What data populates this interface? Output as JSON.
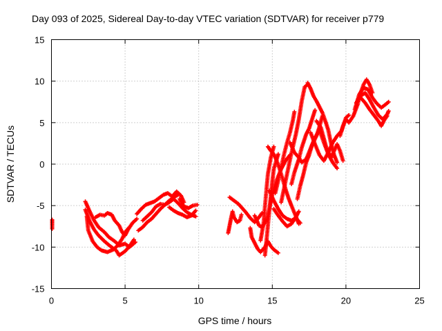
{
  "chart_data": {
    "type": "scatter",
    "title": "Day 093 of 2025, Sidereal Day-to-day VTEC variation (SDTVAR) for receiver p779",
    "xlabel": "GPS time / hours",
    "ylabel": "SDTVAR / TECUs",
    "xlim": [
      0,
      25
    ],
    "ylim": [
      -15,
      15
    ],
    "xticks": [
      "0",
      "5",
      "10",
      "15",
      "20",
      "25"
    ],
    "yticks": [
      "-15",
      "-10",
      "-5",
      "0",
      "5",
      "10",
      "15"
    ],
    "grid": true,
    "marker": "plus",
    "color": "#ff0000",
    "series": [
      {
        "points": [
          [
            0.05,
            -6.7
          ],
          [
            0.05,
            -7.3
          ],
          [
            0.05,
            -7.8
          ]
        ]
      },
      {
        "points": [
          [
            2.3,
            -4.5
          ],
          [
            2.6,
            -5.7
          ],
          [
            2.9,
            -6.8
          ],
          [
            3.2,
            -7.6
          ],
          [
            3.6,
            -8.2
          ],
          [
            3.9,
            -8.8
          ],
          [
            4.3,
            -9.3
          ],
          [
            4.6,
            -9.8
          ],
          [
            5.0,
            -9.6
          ],
          [
            5.3,
            -10.0
          ],
          [
            5.7,
            -9.4
          ]
        ]
      },
      {
        "points": [
          [
            2.3,
            -5.5
          ],
          [
            2.6,
            -6.9
          ],
          [
            2.9,
            -7.9
          ],
          [
            3.2,
            -8.6
          ],
          [
            3.6,
            -9.3
          ],
          [
            4.0,
            -9.9
          ],
          [
            4.4,
            -10.4
          ],
          [
            4.6,
            -11.0
          ],
          [
            5.0,
            -10.5
          ],
          [
            5.3,
            -9.9
          ],
          [
            5.6,
            -9.1
          ]
        ]
      },
      {
        "points": [
          [
            2.4,
            -6.3
          ],
          [
            2.5,
            -8.0
          ],
          [
            2.8,
            -9.3
          ],
          [
            3.1,
            -10.0
          ],
          [
            3.4,
            -10.4
          ],
          [
            3.8,
            -10.6
          ],
          [
            4.2,
            -10.3
          ],
          [
            4.5,
            -9.8
          ],
          [
            4.8,
            -9.0
          ],
          [
            5.0,
            -8.2
          ],
          [
            5.3,
            -7.6
          ]
        ]
      },
      {
        "points": [
          [
            3.0,
            -6.4
          ],
          [
            3.3,
            -6.1
          ],
          [
            3.6,
            -6.2
          ],
          [
            3.8,
            -5.9
          ],
          [
            4.1,
            -6.1
          ],
          [
            4.3,
            -6.8
          ],
          [
            4.6,
            -7.4
          ],
          [
            4.8,
            -8.2
          ],
          [
            5.0,
            -8.6
          ],
          [
            5.2,
            -7.9
          ],
          [
            5.5,
            -7.1
          ],
          [
            5.8,
            -6.6
          ]
        ]
      },
      {
        "points": [
          [
            5.9,
            -8.0
          ],
          [
            6.2,
            -7.6
          ],
          [
            6.5,
            -7.0
          ],
          [
            6.8,
            -6.6
          ],
          [
            7.1,
            -6.0
          ],
          [
            7.4,
            -5.4
          ],
          [
            7.7,
            -4.9
          ],
          [
            8.0,
            -4.4
          ],
          [
            8.3,
            -4.0
          ],
          [
            8.6,
            -3.7
          ]
        ]
      },
      {
        "points": [
          [
            5.8,
            -6.0
          ],
          [
            6.1,
            -5.4
          ],
          [
            6.4,
            -4.9
          ],
          [
            6.7,
            -4.7
          ],
          [
            7.0,
            -4.5
          ],
          [
            7.3,
            -4.1
          ],
          [
            7.6,
            -3.7
          ],
          [
            7.9,
            -3.5
          ],
          [
            8.2,
            -3.9
          ],
          [
            8.5,
            -3.3
          ],
          [
            8.8,
            -3.8
          ],
          [
            9.0,
            -4.6
          ]
        ]
      },
      {
        "points": [
          [
            6.2,
            -6.8
          ],
          [
            6.5,
            -6.3
          ],
          [
            6.8,
            -5.8
          ],
          [
            7.1,
            -5.1
          ],
          [
            7.4,
            -4.8
          ],
          [
            7.7,
            -4.9
          ],
          [
            8.0,
            -4.6
          ],
          [
            8.3,
            -4.2
          ],
          [
            8.6,
            -4.7
          ],
          [
            8.9,
            -5.3
          ],
          [
            9.2,
            -5.8
          ],
          [
            9.5,
            -6.1
          ],
          [
            9.8,
            -6.3
          ]
        ]
      },
      {
        "points": [
          [
            8.0,
            -5.2
          ],
          [
            8.3,
            -5.6
          ],
          [
            8.6,
            -5.9
          ],
          [
            8.9,
            -6.1
          ],
          [
            9.2,
            -6.4
          ],
          [
            9.5,
            -6.2
          ],
          [
            9.8,
            -5.6
          ]
        ]
      },
      {
        "points": [
          [
            8.7,
            -4.2
          ],
          [
            9.0,
            -5.1
          ],
          [
            9.3,
            -5.3
          ],
          [
            9.6,
            -5.0
          ],
          [
            9.9,
            -4.9
          ]
        ]
      },
      {
        "points": [
          [
            12.0,
            -8.3
          ],
          [
            12.1,
            -7.4
          ],
          [
            12.2,
            -6.5
          ],
          [
            12.3,
            -5.7
          ],
          [
            12.4,
            -6.4
          ],
          [
            12.6,
            -7.0
          ],
          [
            12.8,
            -6.8
          ],
          [
            12.9,
            -6.1
          ]
        ]
      },
      {
        "points": [
          [
            12.1,
            -4.0
          ],
          [
            12.4,
            -4.4
          ],
          [
            12.7,
            -4.8
          ],
          [
            12.9,
            -5.2
          ],
          [
            13.2,
            -5.8
          ],
          [
            13.5,
            -6.5
          ],
          [
            13.8,
            -7.0
          ],
          [
            14.1,
            -6.4
          ],
          [
            14.3,
            -5.9
          ]
        ]
      },
      {
        "points": [
          [
            13.8,
            -6.2
          ],
          [
            14.1,
            -7.4
          ],
          [
            14.3,
            -7.6
          ],
          [
            14.6,
            -6.8
          ],
          [
            14.8,
            -5.4
          ],
          [
            15.0,
            -3.6
          ],
          [
            15.3,
            -1.9
          ],
          [
            15.6,
            -0.6
          ],
          [
            15.9,
            0.4
          ],
          [
            16.2,
            1.1
          ]
        ]
      },
      {
        "points": [
          [
            13.5,
            -7.7
          ],
          [
            13.6,
            -8.8
          ],
          [
            13.8,
            -9.5
          ],
          [
            14.0,
            -10.2
          ],
          [
            14.2,
            -10.6
          ],
          [
            14.5,
            -10.0
          ],
          [
            14.7,
            -9.3
          ],
          [
            14.9,
            -9.9
          ],
          [
            15.1,
            -10.3
          ],
          [
            15.4,
            -10.7
          ]
        ]
      },
      {
        "points": [
          [
            14.5,
            -11.0
          ],
          [
            14.6,
            -9.3
          ],
          [
            14.7,
            -7.4
          ],
          [
            14.8,
            -5.6
          ],
          [
            14.9,
            -3.8
          ],
          [
            15.0,
            -2.1
          ],
          [
            15.1,
            -0.6
          ],
          [
            15.3,
            0.6
          ],
          [
            15.4,
            1.2
          ]
        ]
      },
      {
        "points": [
          [
            14.2,
            -9.2
          ],
          [
            14.4,
            -7.2
          ],
          [
            14.5,
            -5.1
          ],
          [
            14.6,
            -3.1
          ],
          [
            14.7,
            -1.2
          ],
          [
            14.9,
            0.8
          ],
          [
            15.1,
            2.1
          ]
        ]
      },
      {
        "points": [
          [
            14.8,
            -3.2
          ],
          [
            15.1,
            -4.4
          ],
          [
            15.4,
            -5.4
          ],
          [
            15.7,
            -6.2
          ],
          [
            16.0,
            -6.6
          ],
          [
            16.3,
            -6.8
          ],
          [
            16.6,
            -6.5
          ],
          [
            16.9,
            -7.1
          ]
        ]
      },
      {
        "points": [
          [
            15.1,
            -5.4
          ],
          [
            15.4,
            -6.2
          ],
          [
            15.7,
            -6.9
          ],
          [
            16.0,
            -7.5
          ],
          [
            16.3,
            -7.2
          ],
          [
            16.6,
            -6.4
          ],
          [
            16.8,
            -5.7
          ]
        ]
      },
      {
        "points": [
          [
            14.7,
            2.1
          ],
          [
            14.9,
            1.6
          ],
          [
            15.1,
            1.2
          ],
          [
            15.3,
            0.4
          ],
          [
            15.5,
            -0.6
          ],
          [
            15.7,
            -1.8
          ],
          [
            15.9,
            -3.0
          ],
          [
            16.1,
            -4.1
          ],
          [
            16.3,
            -5.0
          ],
          [
            16.6,
            -6.3
          ],
          [
            16.8,
            -7.2
          ]
        ]
      },
      {
        "points": [
          [
            15.6,
            -4.6
          ],
          [
            15.8,
            -2.9
          ],
          [
            16.0,
            -1.2
          ],
          [
            16.2,
            0.5
          ],
          [
            16.4,
            2.1
          ],
          [
            16.6,
            3.6
          ],
          [
            16.8,
            5.4
          ],
          [
            17.0,
            7.6
          ],
          [
            17.2,
            9.3
          ],
          [
            17.4,
            9.6
          ]
        ]
      },
      {
        "points": [
          [
            15.2,
            -3.5
          ],
          [
            15.4,
            -2.0
          ],
          [
            15.6,
            -0.4
          ],
          [
            15.8,
            1.2
          ],
          [
            16.0,
            2.6
          ],
          [
            16.2,
            3.8
          ],
          [
            16.4,
            5.3
          ],
          [
            16.5,
            6.3
          ]
        ]
      },
      {
        "points": [
          [
            16.3,
            -2.4
          ],
          [
            16.5,
            -1.0
          ],
          [
            16.8,
            0.6
          ],
          [
            17.0,
            2.0
          ],
          [
            17.3,
            3.6
          ],
          [
            17.5,
            4.3
          ],
          [
            17.7,
            5.4
          ],
          [
            17.9,
            6.5
          ]
        ]
      },
      {
        "points": [
          [
            16.7,
            -4.2
          ],
          [
            16.9,
            -2.6
          ],
          [
            17.1,
            -1.3
          ],
          [
            17.3,
            0.2
          ],
          [
            17.5,
            1.1
          ],
          [
            17.7,
            2.3
          ],
          [
            18.0,
            3.4
          ],
          [
            18.2,
            4.5
          ],
          [
            18.4,
            5.8
          ]
        ]
      },
      {
        "points": [
          [
            16.2,
            2.6
          ],
          [
            16.5,
            1.4
          ],
          [
            16.8,
            0.8
          ],
          [
            17.0,
            0.2
          ],
          [
            17.3,
            0.6
          ],
          [
            17.6,
            1.9
          ],
          [
            17.9,
            3.2
          ],
          [
            18.2,
            4.1
          ],
          [
            18.5,
            2.6
          ],
          [
            18.8,
            1.2
          ],
          [
            19.1,
            0.2
          ],
          [
            19.4,
            -0.5
          ]
        ]
      },
      {
        "points": [
          [
            17.4,
            9.8
          ],
          [
            17.6,
            9.1
          ],
          [
            17.8,
            8.2
          ],
          [
            18.0,
            7.6
          ],
          [
            18.2,
            6.9
          ],
          [
            18.4,
            6.2
          ],
          [
            18.6,
            5.2
          ],
          [
            18.8,
            4.1
          ],
          [
            19.0,
            2.4
          ],
          [
            19.2,
            1.1
          ],
          [
            19.4,
            0.2
          ]
        ]
      },
      {
        "points": [
          [
            18.0,
            5.2
          ],
          [
            18.3,
            4.4
          ],
          [
            18.5,
            3.1
          ],
          [
            18.7,
            1.8
          ],
          [
            19.0,
            0.8
          ],
          [
            19.2,
            1.6
          ],
          [
            19.4,
            2.4
          ],
          [
            19.6,
            1.6
          ],
          [
            19.8,
            0.4
          ]
        ]
      },
      {
        "points": [
          [
            17.6,
            3.8
          ],
          [
            17.9,
            2.4
          ],
          [
            18.2,
            1.1
          ],
          [
            18.5,
            0.4
          ],
          [
            18.8,
            1.4
          ],
          [
            19.1,
            2.6
          ],
          [
            19.4,
            3.4
          ],
          [
            19.7,
            4.0
          ],
          [
            20.0,
            5.6
          ],
          [
            20.2,
            5.9
          ]
        ]
      },
      {
        "points": [
          [
            19.6,
            3.4
          ],
          [
            19.8,
            4.6
          ],
          [
            20.0,
            5.4
          ],
          [
            20.2,
            5.0
          ],
          [
            20.5,
            5.8
          ],
          [
            20.8,
            7.2
          ],
          [
            21.0,
            8.6
          ],
          [
            21.2,
            9.6
          ],
          [
            21.4,
            10.2
          ],
          [
            21.6,
            9.6
          ],
          [
            21.8,
            8.6
          ]
        ]
      },
      {
        "points": [
          [
            20.6,
            6.6
          ],
          [
            20.9,
            8.4
          ],
          [
            21.2,
            9.2
          ],
          [
            21.5,
            9.0
          ],
          [
            21.8,
            8.0
          ],
          [
            22.1,
            7.3
          ],
          [
            22.4,
            6.8
          ],
          [
            22.7,
            7.2
          ],
          [
            22.9,
            7.5
          ]
        ]
      },
      {
        "points": [
          [
            20.7,
            7.4
          ],
          [
            21.0,
            8.2
          ],
          [
            21.3,
            8.6
          ],
          [
            21.6,
            7.8
          ],
          [
            21.9,
            6.8
          ],
          [
            22.2,
            5.9
          ],
          [
            22.5,
            5.4
          ],
          [
            22.8,
            6.0
          ],
          [
            22.9,
            6.4
          ]
        ]
      },
      {
        "points": [
          [
            21.0,
            8.0
          ],
          [
            21.3,
            7.4
          ],
          [
            21.6,
            6.6
          ],
          [
            21.9,
            5.9
          ],
          [
            22.2,
            5.2
          ],
          [
            22.4,
            4.6
          ],
          [
            22.6,
            5.3
          ],
          [
            22.8,
            5.8
          ]
        ]
      }
    ]
  }
}
